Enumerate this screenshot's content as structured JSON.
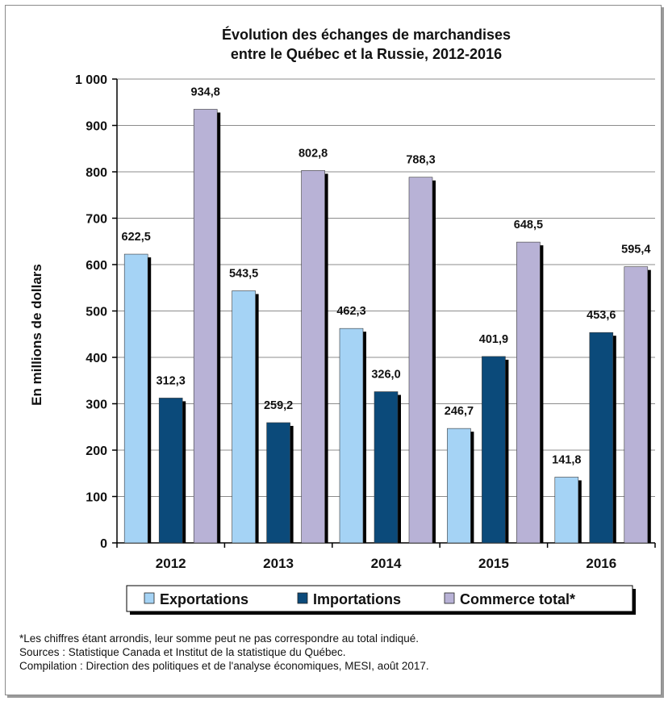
{
  "chart_data": {
    "type": "bar",
    "title": [
      "Évolution des échanges de marchandises",
      "entre le Québec et la Russie, 2012-2016"
    ],
    "ylabel": "En millions de dollars",
    "xlabel": "",
    "ylim": [
      0,
      1000
    ],
    "yticks": [
      0,
      100,
      200,
      300,
      400,
      500,
      600,
      700,
      800,
      900,
      1000
    ],
    "ytick_labels": [
      "0",
      "100",
      "200",
      "300",
      "400",
      "500",
      "600",
      "700",
      "800",
      "900",
      "1 000"
    ],
    "categories": [
      "2012",
      "2013",
      "2014",
      "2015",
      "2016"
    ],
    "grid": true,
    "legend_position": "bottom",
    "series": [
      {
        "name": "Exportations",
        "color": "#a5d3f5",
        "values": [
          622.5,
          543.5,
          462.3,
          246.7,
          141.8
        ],
        "labels": [
          "622,5",
          "543,5",
          "462,3",
          "246,7",
          "141,8"
        ]
      },
      {
        "name": "Importations",
        "color": "#0b4a7a",
        "values": [
          312.3,
          259.2,
          326.0,
          401.9,
          453.6
        ],
        "labels": [
          "312,3",
          "259,2",
          "326,0",
          "401,9",
          "453,6"
        ]
      },
      {
        "name": "Commerce total*",
        "color": "#b8b2d6",
        "values": [
          934.8,
          802.8,
          788.3,
          648.5,
          595.4
        ],
        "labels": [
          "934,8",
          "802,8",
          "788,3",
          "648,5",
          "595,4"
        ]
      }
    ]
  },
  "footnotes": {
    "note": "*Les chiffres étant arrondis, leur somme peut ne pas correspondre au total indiqué.",
    "sources": "Sources : Statistique Canada et Institut de la statistique du Québec.",
    "compilation": "Compilation : Direction des politiques et de l'analyse économiques, MESI, août 2017."
  }
}
